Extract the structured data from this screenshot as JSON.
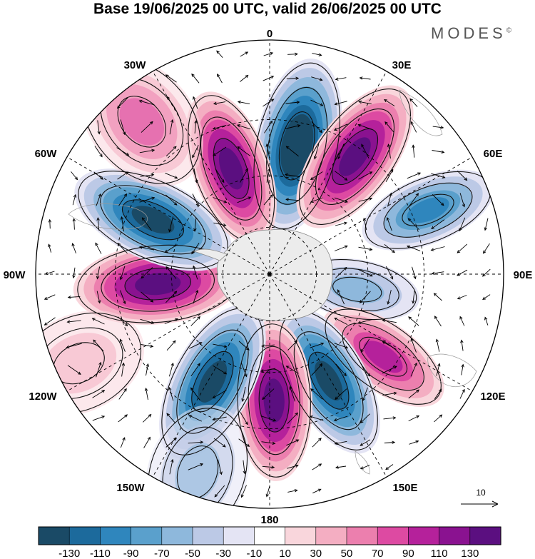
{
  "title": "Base 19/06/2025 00 UTC, valid 26/06/2025 00 UTC",
  "brand": "MODES",
  "brand_mark": "©",
  "longitude_labels": [
    "0",
    "30E",
    "60E",
    "90E",
    "120E",
    "150E",
    "180",
    "150W",
    "120W",
    "90W",
    "60W",
    "30W"
  ],
  "reference_vector_label": "10",
  "colorbar": {
    "ticks": [
      "-130",
      "-110",
      "-90",
      "-70",
      "-50",
      "-30",
      "-10",
      "10",
      "30",
      "50",
      "70",
      "90",
      "110",
      "130"
    ],
    "colors": [
      "#1a4a66",
      "#1c6a9c",
      "#2f86bd",
      "#5aa0cc",
      "#8eb8dc",
      "#bcc9e6",
      "#e4e4f4",
      "#ffffff",
      "#f9d6dc",
      "#f4aec2",
      "#ec7fae",
      "#dd4aa2",
      "#b5219b",
      "#8a1290",
      "#5b0f80"
    ]
  },
  "colors": {
    "land": "#ececec",
    "frame": "#000000"
  },
  "map_data": {
    "projection": "south-polar-stereographic",
    "anomalies": [
      {
        "lon": 12,
        "r": 0.56,
        "value": -140
      },
      {
        "lon": 36,
        "r": 0.62,
        "value": 120
      },
      {
        "lon": 68,
        "r": 0.73,
        "value": -70
      },
      {
        "lon": 100,
        "r": 0.38,
        "value": -45
      },
      {
        "lon": 126,
        "r": 0.6,
        "value": 75
      },
      {
        "lon": 151,
        "r": 0.52,
        "value": -110
      },
      {
        "lon": 178,
        "r": 0.54,
        "value": 110
      },
      {
        "lon": 208,
        "r": 0.52,
        "value": -125
      },
      {
        "lon": 265,
        "r": 0.48,
        "value": 125
      },
      {
        "lon": 295,
        "r": 0.55,
        "value": -125
      },
      {
        "lon": 340,
        "r": 0.48,
        "value": 110
      },
      {
        "lon": 320,
        "r": 0.85,
        "value": 50
      },
      {
        "lon": 245,
        "r": 0.9,
        "value": 25
      },
      {
        "lon": 200,
        "r": 0.9,
        "value": -30
      }
    ]
  }
}
